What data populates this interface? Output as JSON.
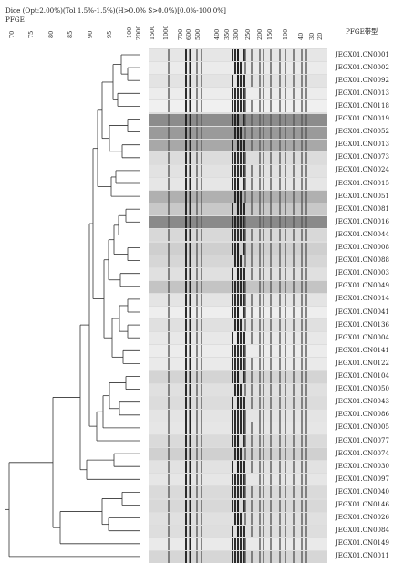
{
  "header": {
    "method": "Dice (Opt:2.00%)(Tol 1.5%-1.5%)(H>0.0% S>0.0%)[0.0%-100.0%]",
    "track": "PFGE",
    "pattern_column": "PFGE带型"
  },
  "similarity_scale": [
    "70",
    "75",
    "80",
    "85",
    "90",
    "95",
    "100"
  ],
  "size_markers": [
    "2000",
    "1500",
    "1000",
    "700",
    "600",
    "500",
    "400",
    "350",
    "300",
    "250",
    "200",
    "150",
    "100",
    "40",
    "30",
    "20"
  ],
  "pattern_labels": [
    "JEGX01.CN0001",
    "JEGX01.CN0002",
    "JEGX01.CN0092",
    "JEGX01.CN0013",
    "JEGX01.CN0118",
    "JEGX01.CN0019",
    "JEGX01.CN0052",
    "JEGX01.CN0013",
    "JEGX01.CN0073",
    "JEGX01.CN0024",
    "JEGX01.CN0015",
    "JEGX01.CN0051",
    "JEGX01.CN0081",
    "JEGX01.CN0016",
    "JEGX01.CN0044",
    "JEGX01.CN0008",
    "JEGX01.CN0088",
    "JEGX01.CN0003",
    "JEGX01.CN0049",
    "JEGX01.CN0014",
    "JEGX01.CN0041",
    "JEGX01.CN0136",
    "JEGX01.CN0004",
    "JEGX01.CN0141",
    "JEGX01.CN0122",
    "JEGX01.CN0104",
    "JEGX01.CN0050",
    "JEGX01.CN0043",
    "JEGX01.CN0086",
    "JEGX01.CN0005",
    "JEGX01.CN0077",
    "JEGX01.CN0074",
    "JEGX01.CN0030",
    "JEGX01.CN0097",
    "JEGX01.CN0040",
    "JEGX01.CN0146",
    "JEGX01.CN0026",
    "JEGX01.CN0084",
    "JEGX01.CN0149",
    "JEGX01.CN0011"
  ],
  "colors": {
    "line": "#333333",
    "gel_dark": "#1a1a1a",
    "gel_light": "#e4e4e4"
  }
}
